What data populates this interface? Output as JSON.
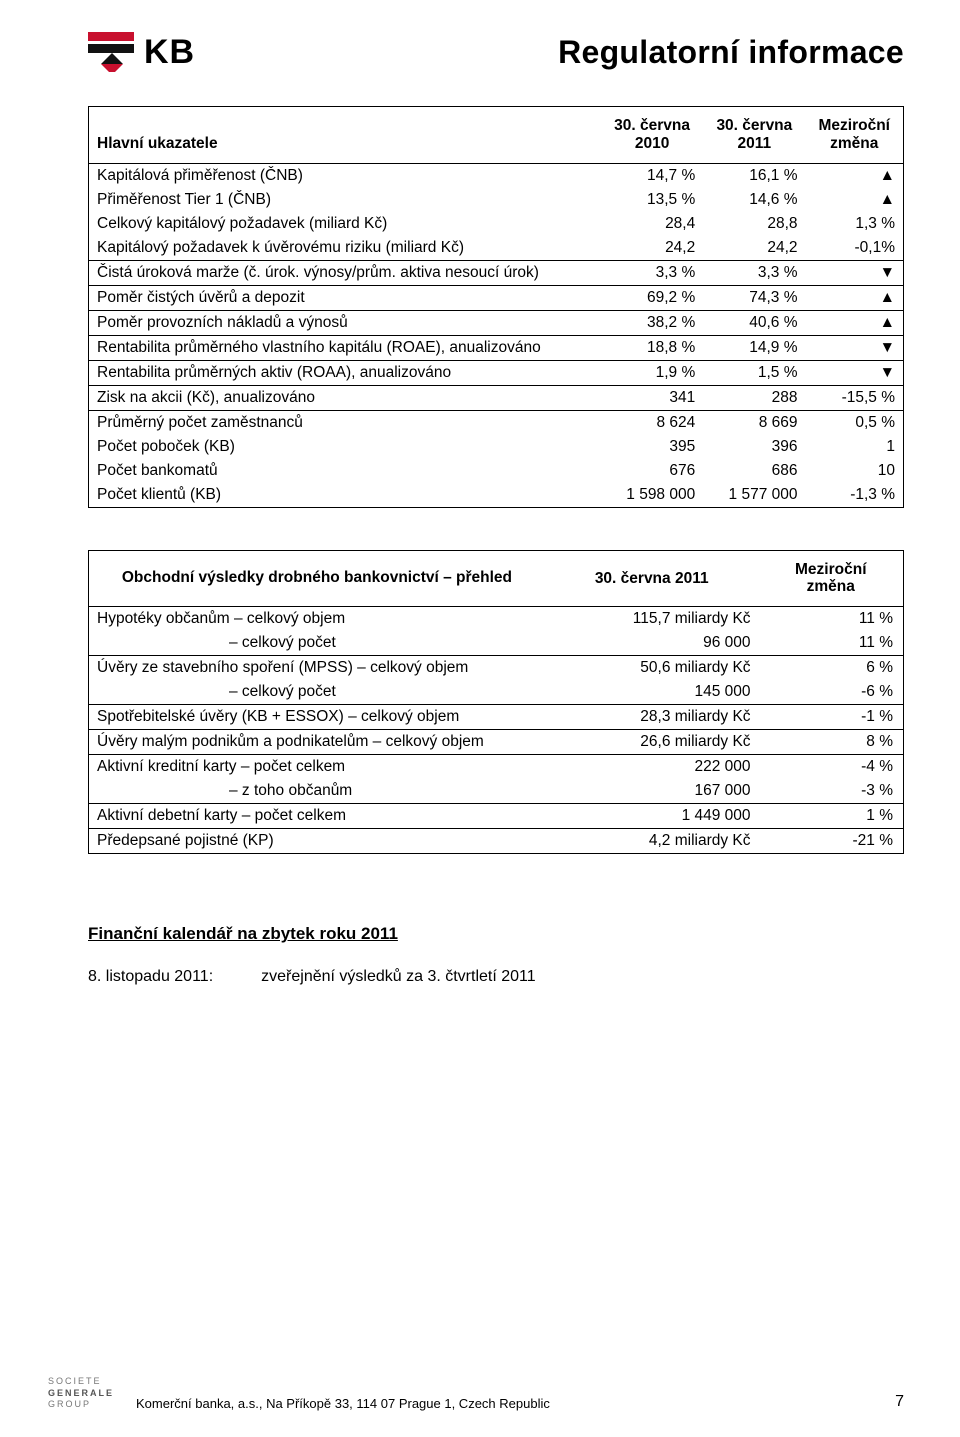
{
  "header": {
    "logo_letters": "KB",
    "doc_title": "Regulatorní informace",
    "logo_red": "#c8102e",
    "logo_black": "#111111"
  },
  "table1": {
    "title": "Hlavní ukazatele",
    "col1_l1": "30. června",
    "col1_l2": "2010",
    "col2_l1": "30. června",
    "col2_l2": "2011",
    "col3_l1": "Meziroční",
    "col3_l2": "změna",
    "rows": [
      {
        "label": "Kapitálová přiměřenost (ČNB)",
        "v1": "14,7 %",
        "v2": "16,1 %",
        "sym": "▲"
      },
      {
        "label": "Přiměřenost Tier 1 (ČNB)",
        "v1": "13,5 %",
        "v2": "14,6 %",
        "sym": "▲"
      },
      {
        "label": "Celkový kapitálový požadavek (miliard Kč)",
        "v1": "28,4",
        "v2": "28,8",
        "sym": "1,3 %"
      },
      {
        "label": "Kapitálový požadavek k úvěrovému riziku (miliard Kč)",
        "v1": "24,2",
        "v2": "24,2",
        "sym": "-0,1%"
      },
      {
        "label": "Čistá úroková marže (č. úrok. výnosy/prům. aktiva nesoucí úrok)",
        "v1": "3,3 %",
        "v2": "3,3 %",
        "sym": "▼"
      },
      {
        "label": "Poměr čistých úvěrů a depozit",
        "v1": "69,2 %",
        "v2": "74,3 %",
        "sym": "▲"
      },
      {
        "label": "Poměr provozních nákladů a výnosů",
        "v1": "38,2 %",
        "v2": "40,6 %",
        "sym": "▲"
      },
      {
        "label": "Rentabilita průměrného vlastního kapitálu (ROAE), anualizováno",
        "v1": "18,8 %",
        "v2": "14,9 %",
        "sym": "▼"
      },
      {
        "label": "Rentabilita průměrných aktiv (ROAA), anualizováno",
        "v1": "1,9 %",
        "v2": "1,5 %",
        "sym": "▼"
      },
      {
        "label": "Zisk na akcii (Kč), anualizováno",
        "v1": "341",
        "v2": "288",
        "sym": "-15,5 %"
      },
      {
        "label": "Průměrný počet zaměstnanců",
        "v1": "8 624",
        "v2": "8 669",
        "sym": "0,5 %"
      },
      {
        "label": "Počet poboček (KB)",
        "v1": "395",
        "v2": "396",
        "sym": "1"
      },
      {
        "label": "Počet bankomatů",
        "v1": "676",
        "v2": "686",
        "sym": "10"
      },
      {
        "label": "Počet klientů (KB)",
        "v1": "1 598 000",
        "v2": "1 577 000",
        "sym": "-1,3 %"
      }
    ]
  },
  "table2": {
    "title": "Obchodní výsledky drobného bankovnictví – přehled",
    "col1": "30. června 2011",
    "col2_l1": "Meziroční",
    "col2_l2": "změna",
    "rows": [
      {
        "label": "Hypotéky občanům – celkový objem",
        "v1": "115,7 miliardy Kč",
        "v2": "11 %",
        "indent": false,
        "line": false
      },
      {
        "label": "– celkový počet",
        "v1": "96 000",
        "v2": "11 %",
        "indent": true,
        "line": true
      },
      {
        "label": "Úvěry ze stavebního spoření (MPSS) – celkový objem",
        "v1": "50,6 miliardy Kč",
        "v2": "6 %",
        "indent": false,
        "line": false
      },
      {
        "label": "– celkový počet",
        "v1": "145 000",
        "v2": "-6 %",
        "indent": true,
        "line": true
      },
      {
        "label": "Spotřebitelské úvěry (KB + ESSOX) – celkový objem",
        "v1": "28,3 miliardy Kč",
        "v2": "-1 %",
        "indent": false,
        "line": true
      },
      {
        "label": "Úvěry malým podnikům a podnikatelům – celkový objem",
        "v1": "26,6 miliardy Kč",
        "v2": "8 %",
        "indent": false,
        "line": true
      },
      {
        "label": "Aktivní kreditní karty – počet celkem",
        "v1": "222 000",
        "v2": "-4 %",
        "indent": false,
        "line": false
      },
      {
        "label": "– z toho občanům",
        "v1": "167 000",
        "v2": "-3 %",
        "indent": true,
        "line": true
      },
      {
        "label": "Aktivní debetní karty – počet celkem",
        "v1": "1 449 000",
        "v2": "1 %",
        "indent": false,
        "line": true
      },
      {
        "label": "Předepsané pojistné (KP)",
        "v1": "4,2 miliardy Kč",
        "v2": "-21 %",
        "indent": false,
        "line": false
      }
    ]
  },
  "calendar": {
    "title": "Finanční kalendář na zbytek roku 2011",
    "date": "8. listopadu 2011:",
    "text": "zveřejnění výsledků za 3. čtvrtletí 2011"
  },
  "footer": {
    "sg_l1": "SOCIETE",
    "sg_l2": "GENERALE",
    "sg_l3": "GROUP",
    "mid": "Komerční banka, a.s., Na Příkopě 33, 114 07 Prague 1, Czech Republic",
    "page": "7"
  }
}
